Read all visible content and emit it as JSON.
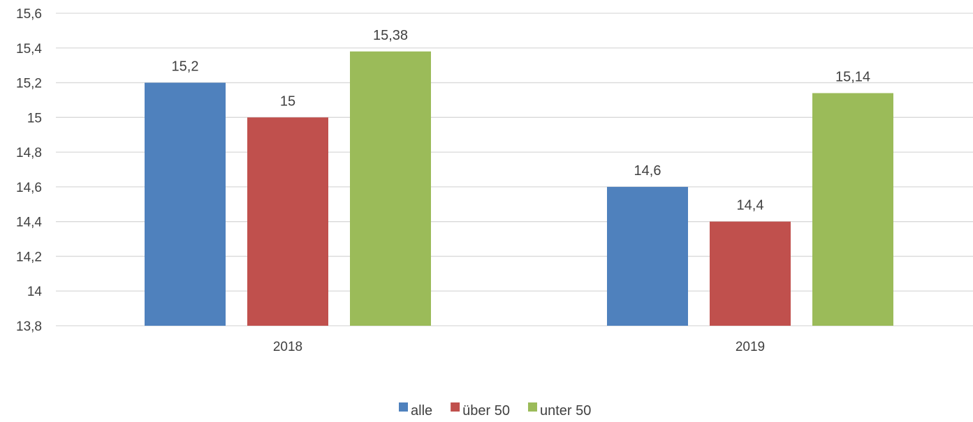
{
  "chart_data": {
    "type": "bar",
    "title": "",
    "xlabel": "",
    "ylabel": "",
    "categories": [
      "2018",
      "2019"
    ],
    "series": [
      {
        "name": "alle",
        "color": "#4F81BD",
        "values": [
          15.2,
          14.6
        ],
        "labels": [
          "15,2",
          "14,6"
        ]
      },
      {
        "name": "über 50",
        "color": "#C0504D",
        "values": [
          15.0,
          14.4
        ],
        "labels": [
          "15",
          "14,4"
        ]
      },
      {
        "name": "unter 50",
        "color": "#9BBB59",
        "values": [
          15.38,
          15.14
        ],
        "labels": [
          "15,38",
          "15,14"
        ]
      }
    ],
    "ylim": [
      13.8,
      15.6
    ],
    "yticks": [
      {
        "value": 13.8,
        "label": "13,8"
      },
      {
        "value": 14.0,
        "label": "14"
      },
      {
        "value": 14.2,
        "label": "14,2"
      },
      {
        "value": 14.4,
        "label": "14,4"
      },
      {
        "value": 14.6,
        "label": "14,6"
      },
      {
        "value": 14.8,
        "label": "14,8"
      },
      {
        "value": 15.0,
        "label": "15"
      },
      {
        "value": 15.2,
        "label": "15,2"
      },
      {
        "value": 15.4,
        "label": "15,4"
      },
      {
        "value": 15.6,
        "label": "15,6"
      }
    ],
    "grid": true,
    "gridline_color": "#D9D9D9",
    "legend_position": "bottom"
  }
}
